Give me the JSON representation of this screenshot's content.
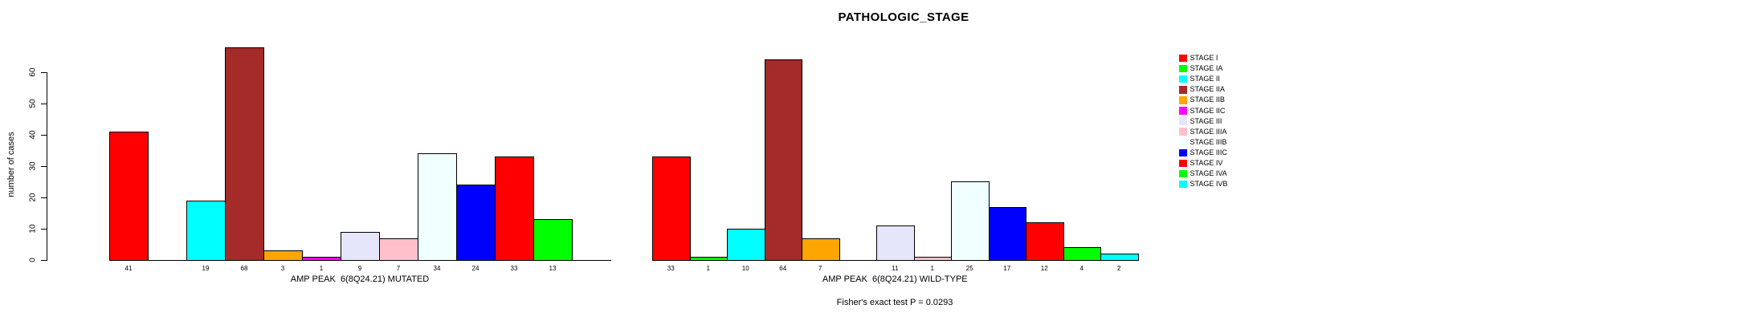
{
  "chart_data": {
    "type": "bar",
    "title": "PATHOLOGIC_STAGE",
    "ylabel": "number of cases",
    "ylim": [
      0,
      68
    ],
    "yticks": [
      0,
      10,
      20,
      30,
      40,
      50,
      60
    ],
    "grid": false,
    "legend_position": "right",
    "categories": [
      "STAGE I",
      "STAGE IA",
      "STAGE II",
      "STAGE IIA",
      "STAGE IIB",
      "STAGE IIC",
      "STAGE III",
      "STAGE IIIA",
      "STAGE IIIB",
      "STAGE IIIC",
      "STAGE IV",
      "STAGE IVA",
      "STAGE IVB"
    ],
    "colors": [
      "#FF0000",
      "#00FF00",
      "#00FFFF",
      "#A52A2A",
      "#FFA500",
      "#FF00FF",
      "#E6E6FA",
      "#FFC0CB",
      "#F0FFFF",
      "#0000FF",
      "#FF0000",
      "#00FF00",
      "#00FFFF"
    ],
    "series": [
      {
        "key": "mutated",
        "name": "AMP PEAK  6(8Q24.21) MUTATED",
        "values": [
          41,
          0,
          19,
          68,
          3,
          1,
          9,
          7,
          34,
          24,
          33,
          13,
          0
        ]
      },
      {
        "key": "wild-type",
        "name": "AMP PEAK  6(8Q24.21) WILD-TYPE",
        "values": [
          33,
          1,
          10,
          64,
          7,
          0,
          11,
          1,
          25,
          17,
          12,
          4,
          2
        ]
      }
    ],
    "annotation": "Fisher's exact test P = 0.0293"
  }
}
